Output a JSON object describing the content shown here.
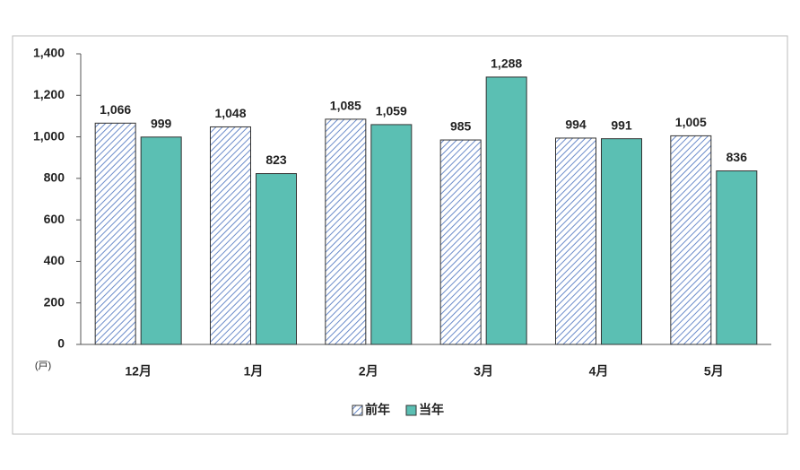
{
  "chart_data": {
    "type": "bar",
    "y_unit_label": "(戸)",
    "categories": [
      "12月",
      "1月",
      "2月",
      "3月",
      "4月",
      "5月"
    ],
    "series": [
      {
        "name": "前年",
        "color": "#5b7fc4",
        "pattern": "hatch",
        "values": [
          1066,
          1048,
          1085,
          985,
          994,
          1005
        ],
        "value_labels": [
          "1,066",
          "1,048",
          "1,085",
          "985",
          "994",
          "1,005"
        ]
      },
      {
        "name": "当年",
        "color": "#5bbfb3",
        "values": [
          999,
          823,
          1059,
          1288,
          991,
          836
        ],
        "value_labels": [
          "999",
          "823",
          "1,059",
          "1,288",
          "991",
          "836"
        ]
      }
    ],
    "ylim": [
      0,
      1400
    ],
    "yticks": [
      0,
      200,
      400,
      600,
      800,
      {
        "value": 1000,
        "label": "1,000"
      },
      {
        "value": 1200,
        "label": "1,200"
      },
      {
        "value": 1400,
        "label": "1,400"
      }
    ],
    "legend": "bottom"
  }
}
